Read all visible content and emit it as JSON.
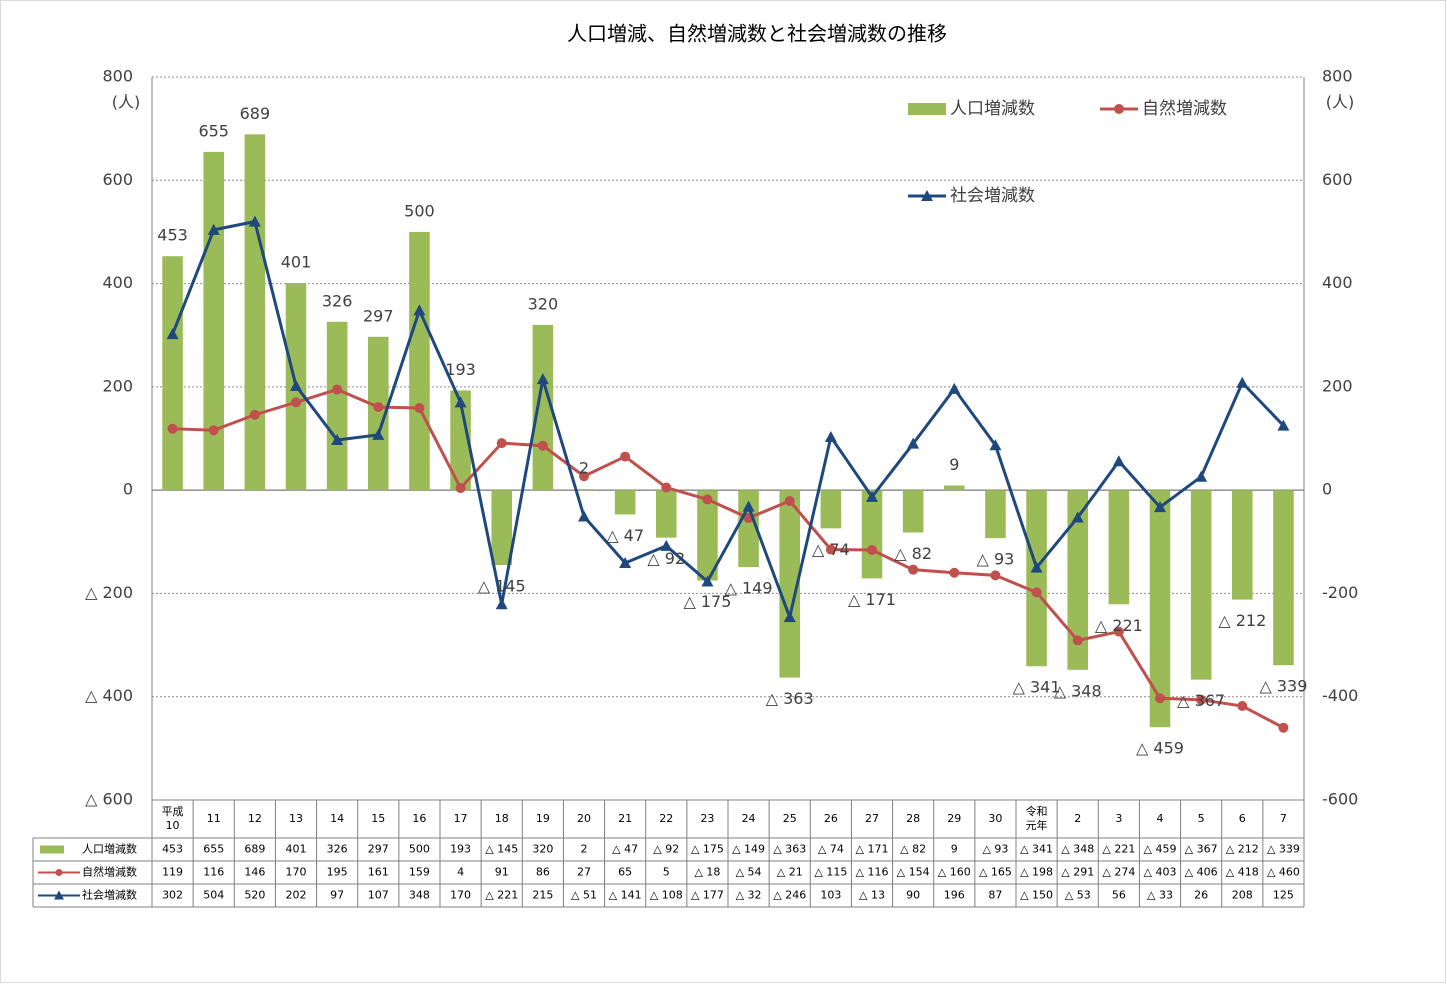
{
  "chart_data": {
    "type": "bar-line",
    "title": "人口増減、自然増減数と社会増減数の推移",
    "y_unit": "(人)",
    "y2_unit": "(人)",
    "categories": [
      "平成\n10",
      "11",
      "12",
      "13",
      "14",
      "15",
      "16",
      "17",
      "18",
      "19",
      "20",
      "21",
      "22",
      "23",
      "24",
      "25",
      "26",
      "27",
      "28",
      "29",
      "30",
      "令和\n元年",
      "2",
      "3",
      "4",
      "5",
      "6",
      "7"
    ],
    "series": [
      {
        "name": "人口増減数",
        "type": "bar",
        "color": "#9bbb59",
        "values": [
          453,
          655,
          689,
          401,
          326,
          297,
          500,
          193,
          -145,
          320,
          2,
          -47,
          -92,
          -175,
          -149,
          -363,
          -74,
          -171,
          -82,
          9,
          -93,
          -341,
          -348,
          -221,
          -459,
          -367,
          -212,
          -339
        ],
        "value_labels": [
          "453",
          "655",
          "689",
          "401",
          "326",
          "297",
          "500",
          "193",
          "△ 145",
          "320",
          "2",
          "△ 47",
          "△ 92",
          "△ 175",
          "△ 149",
          "△ 363",
          "△ 74",
          "△ 171",
          "△ 82",
          "9",
          "△ 93",
          "△ 341",
          "△ 348",
          "△ 221",
          "△ 459",
          "△ 367",
          "△ 212",
          "△ 339"
        ]
      },
      {
        "name": "自然増減数",
        "type": "line",
        "marker": "circle",
        "color": "#c0504d",
        "values": [
          119,
          116,
          146,
          170,
          195,
          161,
          159,
          4,
          91,
          86,
          27,
          65,
          5,
          -18,
          -54,
          -21,
          -115,
          -116,
          -154,
          -160,
          -165,
          -198,
          -291,
          -274,
          -403,
          -406,
          -418,
          -460
        ],
        "value_labels": [
          "119",
          "116",
          "146",
          "170",
          "195",
          "161",
          "159",
          "4",
          "91",
          "86",
          "27",
          "65",
          "5",
          "△ 18",
          "△ 54",
          "△ 21",
          "△ 115",
          "△ 116",
          "△ 154",
          "△ 160",
          "△ 165",
          "△ 198",
          "△ 291",
          "△ 274",
          "△ 403",
          "△ 406",
          "△ 418",
          "△ 460"
        ]
      },
      {
        "name": "社会増減数",
        "type": "line",
        "marker": "triangle",
        "color": "#1f497d",
        "values": [
          302,
          504,
          520,
          202,
          97,
          107,
          348,
          170,
          -221,
          215,
          -51,
          -141,
          -108,
          -177,
          -32,
          -246,
          103,
          -13,
          90,
          196,
          87,
          -150,
          -53,
          56,
          -33,
          26,
          208,
          125
        ],
        "value_labels": [
          "302",
          "504",
          "520",
          "202",
          "97",
          "107",
          "348",
          "170",
          "△ 221",
          "215",
          "△ 51",
          "△ 141",
          "△ 108",
          "△ 177",
          "△ 32",
          "△ 246",
          "103",
          "△ 13",
          "90",
          "196",
          "87",
          "△ 150",
          "△ 53",
          "56",
          "△ 33",
          "26",
          "208",
          "125"
        ]
      }
    ],
    "ylim": [
      -600,
      800
    ],
    "yticks": [
      {
        "value": -600,
        "label": "△ 600"
      },
      {
        "value": -400,
        "label": "△ 400"
      },
      {
        "value": -200,
        "label": "△ 200"
      },
      0,
      200,
      400,
      600,
      800
    ],
    "y2lim": [
      -600,
      800
    ],
    "y2ticks": [
      -600,
      -400,
      -200,
      0,
      200,
      400,
      600,
      800
    ],
    "grid": true,
    "legend": "upper right",
    "data_table": true
  }
}
